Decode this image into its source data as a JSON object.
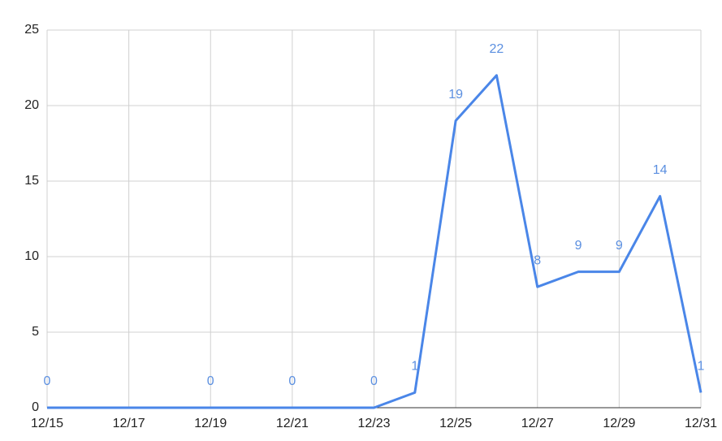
{
  "chart_data": {
    "type": "line",
    "x": [
      "12/15",
      "12/19",
      "12/21",
      "12/23",
      "12/24",
      "12/25",
      "12/26",
      "12/27",
      "12/28",
      "12/29",
      "12/30",
      "12/31"
    ],
    "series": [
      {
        "color": "#4a86e8",
        "values": [
          0,
          0,
          0,
          0,
          1,
          19,
          22,
          8,
          9,
          9,
          14,
          1
        ]
      }
    ],
    "xticks": [
      "12/15",
      "12/17",
      "12/19",
      "12/21",
      "12/23",
      "12/25",
      "12/27",
      "12/29",
      "12/31"
    ],
    "ylim": [
      0,
      25
    ],
    "yticks": [
      0,
      5,
      10,
      15,
      20,
      25
    ],
    "grid": true,
    "data_labels": true
  }
}
